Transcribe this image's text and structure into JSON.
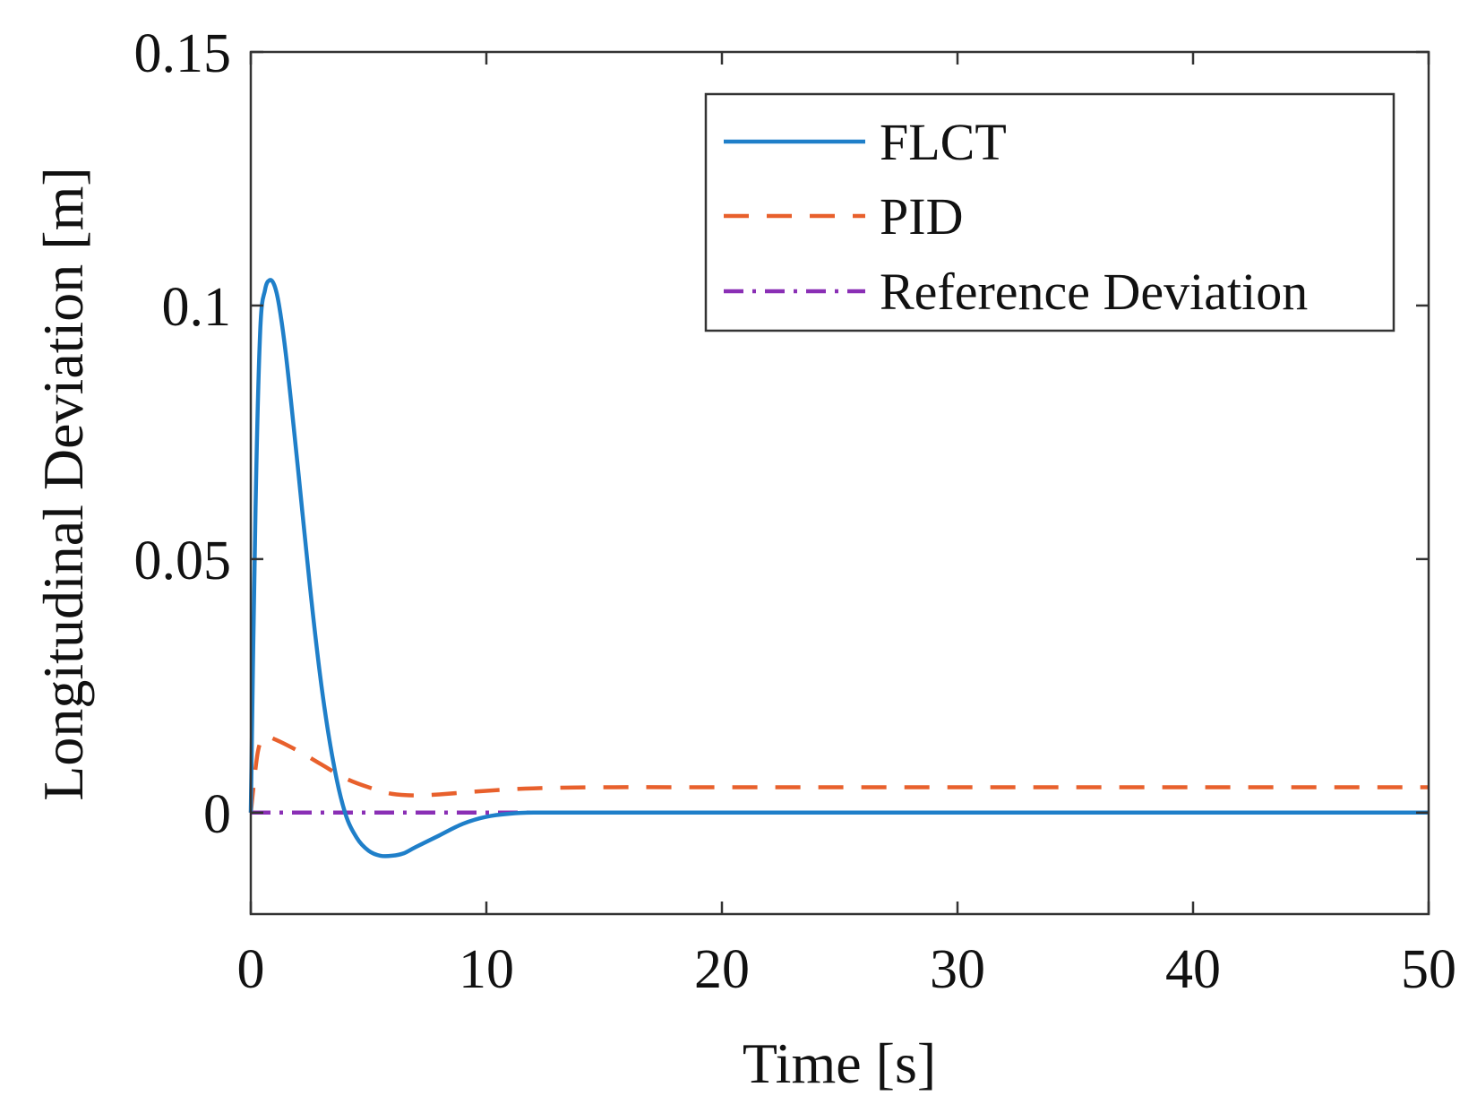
{
  "chart_data": {
    "type": "line",
    "title": "",
    "xlabel": "Time [s]",
    "ylabel": "Longitudinal Deviation [m]",
    "xlim": [
      0,
      50
    ],
    "ylim": [
      -0.02,
      0.15
    ],
    "xticks": [
      0,
      10,
      20,
      30,
      40,
      50
    ],
    "xtick_labels": [
      "0",
      "10",
      "20",
      "30",
      "40",
      "50"
    ],
    "yticks": [
      0,
      0.05,
      0.1,
      0.15
    ],
    "ytick_labels": [
      "0",
      "0.05",
      "0.1",
      "0.15"
    ],
    "grid": false,
    "legend_position": "top-right",
    "series": [
      {
        "name": "FLCT",
        "color": "#1f7fc9",
        "style": "solid",
        "x": [
          0,
          0.2,
          0.4,
          0.6,
          0.8,
          1.0,
          1.2,
          1.5,
          2.0,
          2.5,
          3.0,
          3.5,
          4.0,
          4.5,
          5.0,
          5.5,
          6.0,
          6.5,
          7.0,
          8.0,
          9.0,
          10.0,
          11.0,
          12.0,
          14.0,
          20.0,
          30.0,
          40.0,
          50.0
        ],
        "y": [
          0.0,
          0.06,
          0.095,
          0.103,
          0.105,
          0.104,
          0.1,
          0.09,
          0.068,
          0.045,
          0.025,
          0.01,
          0.0,
          -0.005,
          -0.0075,
          -0.0085,
          -0.0085,
          -0.008,
          -0.0068,
          -0.0045,
          -0.0022,
          -0.0008,
          -0.0002,
          0.0,
          0.0,
          0.0,
          0.0,
          0.0,
          0.0
        ]
      },
      {
        "name": "PID",
        "color": "#e8602c",
        "style": "dashed",
        "x": [
          0,
          0.3,
          0.6,
          1.0,
          2.0,
          3.0,
          4.0,
          5.0,
          6.0,
          7.0,
          8.0,
          10.0,
          12.0,
          15.0,
          20.0,
          30.0,
          40.0,
          50.0
        ],
        "y": [
          0.0,
          0.012,
          0.0148,
          0.0145,
          0.0122,
          0.0095,
          0.0068,
          0.005,
          0.0037,
          0.0034,
          0.0036,
          0.0043,
          0.0048,
          0.005,
          0.005,
          0.005,
          0.005,
          0.005
        ]
      },
      {
        "name": "Reference Deviation",
        "color": "#8a2fb5",
        "style": "dashdot",
        "x": [
          0,
          50
        ],
        "y": [
          0,
          0
        ]
      }
    ]
  }
}
